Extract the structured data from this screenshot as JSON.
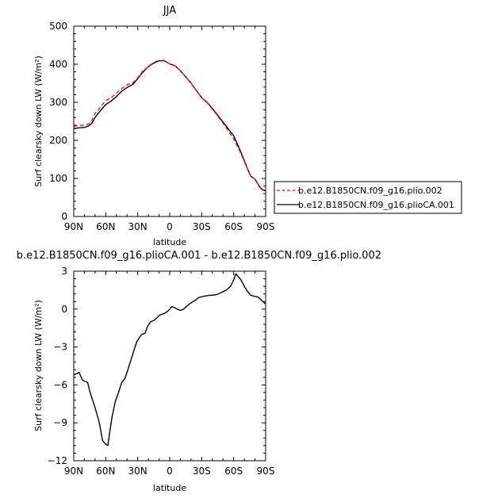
{
  "chart_data": [
    {
      "type": "line",
      "title": "JJA",
      "xlabel": "latitude",
      "ylabel": "Surf clearsky down LW (W/m²)",
      "xlim": [
        90,
        -90
      ],
      "ylim": [
        0,
        500
      ],
      "x_ticks": [
        90,
        60,
        30,
        0,
        -30,
        -60,
        -90
      ],
      "x_tick_labels": [
        "90N",
        "60N",
        "30N",
        "0",
        "30S",
        "60S",
        "90S"
      ],
      "y_ticks": [
        0,
        100,
        200,
        300,
        400,
        500
      ],
      "y_tick_labels": [
        "0",
        "100",
        "200",
        "300",
        "400",
        "500"
      ],
      "legend_position": "right",
      "series": [
        {
          "name": "b.e12.B1850CN.f09_g16.plio.002",
          "color": "#e41a1c",
          "style": "dashed",
          "x": [
            90,
            85,
            80,
            76,
            73,
            70,
            65,
            60,
            55,
            50,
            45,
            40,
            35,
            30,
            25,
            20,
            15,
            10,
            5,
            0,
            -5,
            -10,
            -15,
            -20,
            -25,
            -30,
            -35,
            -40,
            -45,
            -50,
            -55,
            -60,
            -65,
            -70,
            -73,
            -76,
            -80,
            -83,
            -86,
            -90
          ],
          "y": [
            237,
            239,
            240,
            243,
            253,
            270,
            288,
            304,
            312,
            324,
            336,
            346,
            350,
            364,
            383,
            394,
            405,
            410,
            410,
            401,
            396,
            383,
            367,
            350,
            331,
            312,
            299,
            282,
            264,
            245,
            225,
            204,
            176,
            145,
            124,
            106,
            98,
            85,
            73,
            67
          ]
        },
        {
          "name": "b.e12.B1850CN.f09_g16.plioCA.001",
          "color": "#000000",
          "style": "solid",
          "x": [
            90,
            85,
            80,
            76,
            73,
            70,
            65,
            60,
            55,
            50,
            45,
            40,
            35,
            30,
            25,
            20,
            15,
            10,
            5,
            0,
            -5,
            -10,
            -15,
            -20,
            -25,
            -30,
            -35,
            -40,
            -45,
            -50,
            -55,
            -60,
            -65,
            -70,
            -73,
            -76,
            -80,
            -83,
            -86,
            -90
          ],
          "y": [
            231,
            233,
            234,
            238,
            245,
            260,
            278,
            294,
            303,
            315,
            329,
            339,
            346,
            362,
            380,
            394,
            403,
            409,
            409,
            401,
            396,
            383,
            367,
            350,
            331,
            312,
            300,
            284,
            266,
            248,
            230,
            212,
            181,
            147,
            125,
            106,
            98,
            84,
            72,
            67
          ]
        }
      ]
    },
    {
      "type": "line",
      "title": "b.e12.B1850CN.f09_g16.plioCA.001 - b.e12.B1850CN.f09_g16.plio.002",
      "xlabel": "latitude",
      "ylabel": "Surf clearsky down LW (W/m²)",
      "xlim": [
        90,
        -90
      ],
      "ylim": [
        -12,
        3
      ],
      "x_ticks": [
        90,
        60,
        30,
        0,
        -30,
        -60,
        -90
      ],
      "x_tick_labels": [
        "90N",
        "60N",
        "30N",
        "0",
        "30S",
        "60S",
        "90S"
      ],
      "y_ticks": [
        -12,
        -9,
        -6,
        -3,
        0,
        3
      ],
      "y_tick_labels": [
        "−12",
        "−9",
        "−6",
        "−3",
        "0",
        "3"
      ],
      "series": [
        {
          "color": "#000000",
          "style": "solid",
          "x": [
            90,
            87,
            85,
            82,
            80,
            77,
            75,
            70,
            66,
            63,
            60,
            58,
            56,
            54,
            51,
            48,
            45,
            42,
            40,
            37,
            34,
            31,
            28,
            26,
            23,
            21,
            18,
            15,
            12,
            10,
            7,
            4,
            1,
            -2,
            -5,
            -8,
            -10,
            -13,
            -17,
            -20,
            -24,
            -27,
            -31,
            -34,
            -38,
            -40,
            -44,
            -48,
            -53,
            -57,
            -60,
            -62,
            -64,
            -67,
            -70,
            -73,
            -76,
            -80,
            -83,
            -86,
            -90
          ],
          "y": [
            -5.2,
            -5.1,
            -5.0,
            -5.6,
            -5.7,
            -5.8,
            -6.5,
            -7.8,
            -9.0,
            -10.4,
            -10.7,
            -10.8,
            -9.6,
            -8.5,
            -7.3,
            -6.6,
            -5.8,
            -5.5,
            -5.0,
            -4.2,
            -3.4,
            -2.6,
            -2.2,
            -2.0,
            -1.9,
            -1.4,
            -1.0,
            -0.9,
            -0.7,
            -0.5,
            -0.4,
            -0.3,
            -0.1,
            0.2,
            0.1,
            -0.05,
            -0.1,
            0.0,
            0.3,
            0.5,
            0.7,
            0.9,
            1.0,
            1.05,
            1.1,
            1.1,
            1.15,
            1.3,
            1.5,
            1.8,
            2.3,
            2.8,
            2.6,
            2.3,
            1.8,
            1.4,
            1.1,
            1.0,
            0.95,
            0.7,
            0.4
          ]
        }
      ]
    }
  ]
}
